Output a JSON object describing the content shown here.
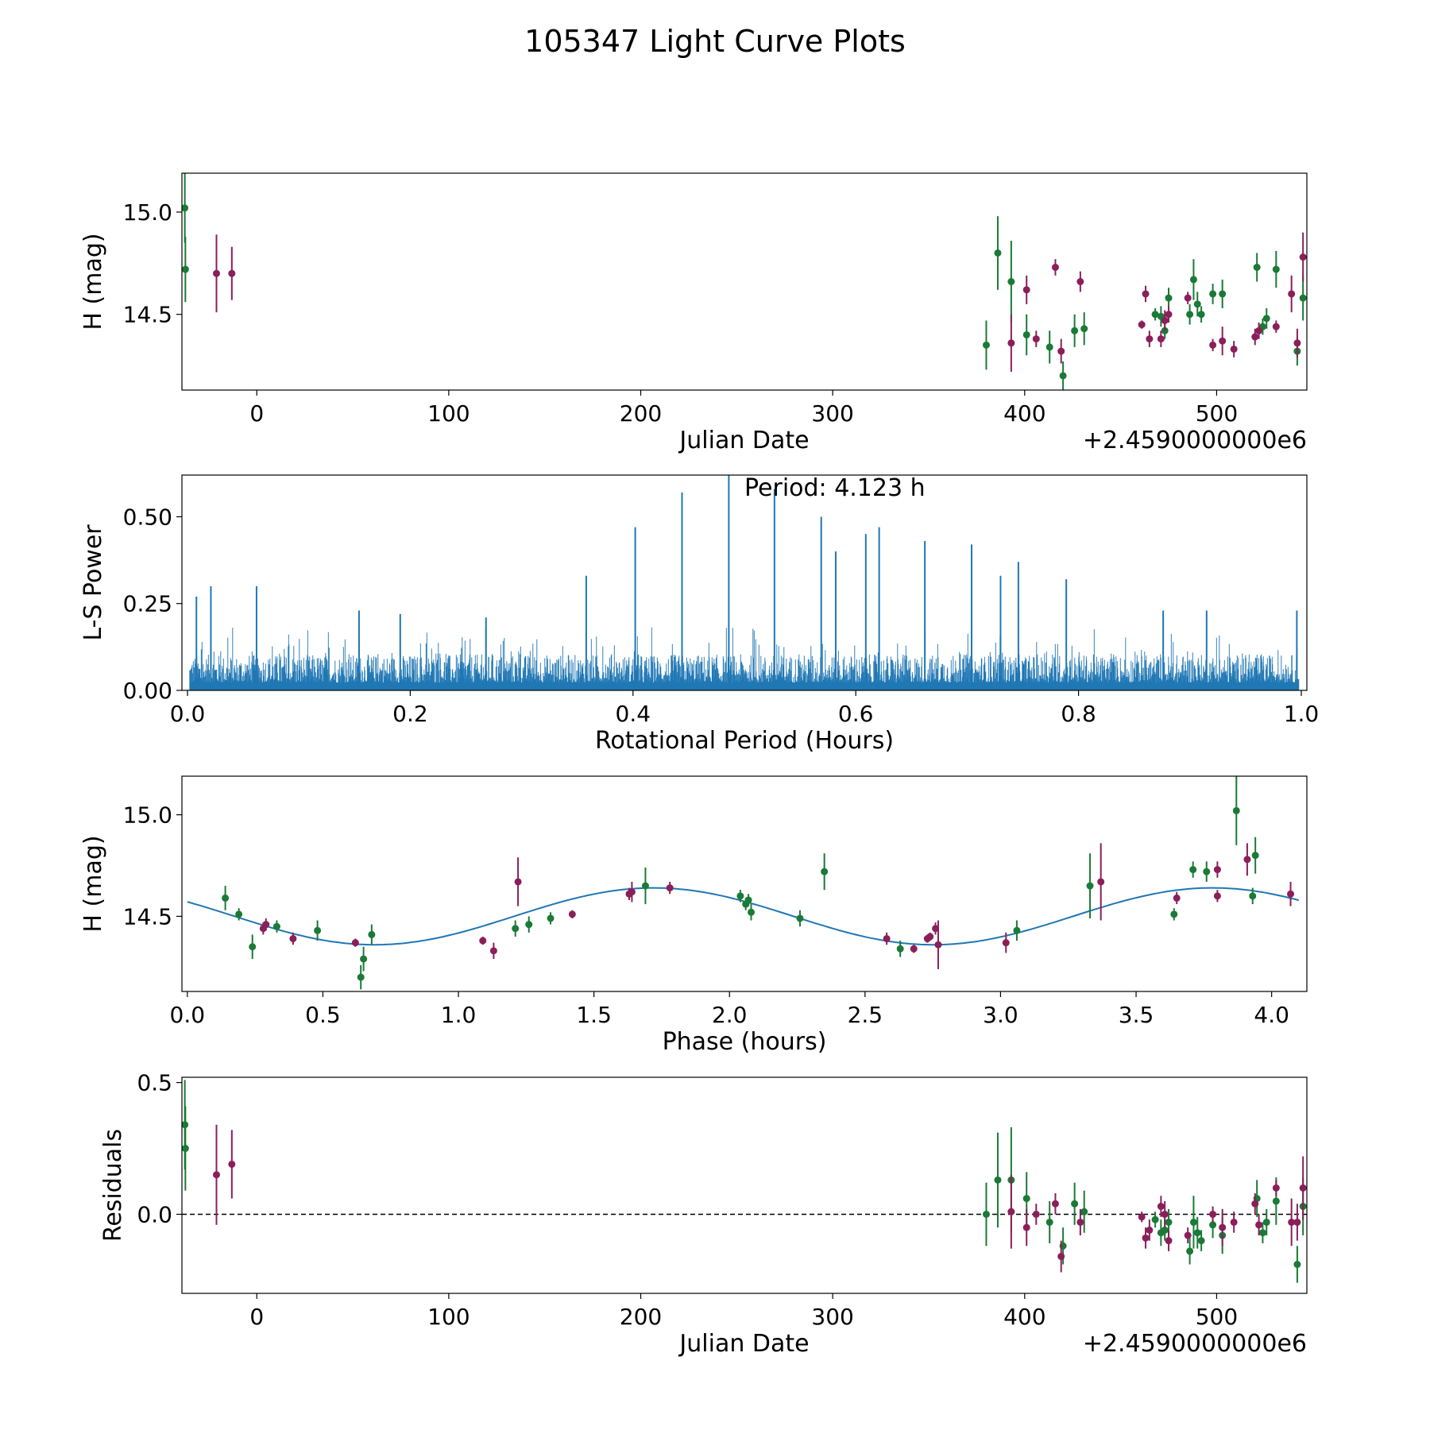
{
  "figure": {
    "suptitle": "105347 Light Curve Plots",
    "colors": {
      "green": "#1a7a36",
      "purple": "#8a1f5a",
      "line": "#1f77b4",
      "dashed": "#000000"
    }
  },
  "chart_data": [
    {
      "type": "scatter",
      "name": "light-curve",
      "title": "",
      "xlabel": "Julian Date",
      "ylabel": "H (mag)",
      "offset_text": "+2.4590000000e6",
      "xlim": [
        -39,
        547
      ],
      "ylim": [
        14.13,
        15.19
      ],
      "xticks": [
        0,
        100,
        200,
        300,
        400,
        500
      ],
      "xtick_labels": [
        "0",
        "100",
        "200",
        "300",
        "400",
        "500"
      ],
      "yticks": [
        14.5,
        15.0
      ],
      "ytick_labels": [
        "14.5",
        "15.0"
      ],
      "series": [
        {
          "name": "green",
          "color": "#1a7a36",
          "points": [
            [
              -37.5,
              15.02,
              0.17
            ],
            [
              -37.2,
              14.72,
              0.16
            ],
            [
              380,
              14.35,
              0.12
            ],
            [
              386,
              14.8,
              0.18
            ],
            [
              393,
              14.66,
              0.2
            ],
            [
              401,
              14.4,
              0.1
            ],
            [
              413,
              14.34,
              0.08
            ],
            [
              420,
              14.2,
              0.07
            ],
            [
              426,
              14.42,
              0.08
            ],
            [
              431,
              14.43,
              0.08
            ],
            [
              468,
              14.5,
              0.03
            ],
            [
              471,
              14.49,
              0.05
            ],
            [
              473,
              14.42,
              0.04
            ],
            [
              475,
              14.58,
              0.05
            ],
            [
              486,
              14.5,
              0.05
            ],
            [
              488,
              14.67,
              0.1
            ],
            [
              490,
              14.55,
              0.06
            ],
            [
              492,
              14.5,
              0.04
            ],
            [
              498,
              14.6,
              0.05
            ],
            [
              503,
              14.6,
              0.07
            ],
            [
              521,
              14.73,
              0.07
            ],
            [
              524,
              14.44,
              0.04
            ],
            [
              526,
              14.48,
              0.05
            ],
            [
              531,
              14.72,
              0.09
            ],
            [
              542,
              14.32,
              0.07
            ],
            [
              545,
              14.58,
              0.11
            ]
          ]
        },
        {
          "name": "purple",
          "color": "#8a1f5a",
          "points": [
            [
              -21,
              14.7,
              0.19
            ],
            [
              -13,
              14.7,
              0.13
            ],
            [
              393,
              14.36,
              0.14
            ],
            [
              401,
              14.62,
              0.07
            ],
            [
              406,
              14.38,
              0.04
            ],
            [
              416,
              14.73,
              0.04
            ],
            [
              419,
              14.32,
              0.06
            ],
            [
              429,
              14.66,
              0.05
            ],
            [
              461,
              14.45,
              0.02
            ],
            [
              463,
              14.6,
              0.04
            ],
            [
              465,
              14.38,
              0.04
            ],
            [
              471,
              14.38,
              0.04
            ],
            [
              473,
              14.47,
              0.05
            ],
            [
              475,
              14.5,
              0.04
            ],
            [
              485,
              14.58,
              0.03
            ],
            [
              498,
              14.35,
              0.03
            ],
            [
              503,
              14.37,
              0.07
            ],
            [
              509,
              14.33,
              0.04
            ],
            [
              520,
              14.39,
              0.04
            ],
            [
              522,
              14.42,
              0.04
            ],
            [
              531,
              14.44,
              0.03
            ],
            [
              539,
              14.6,
              0.09
            ],
            [
              542,
              14.36,
              0.07
            ],
            [
              545,
              14.78,
              0.12
            ]
          ]
        }
      ]
    },
    {
      "type": "line",
      "name": "periodogram",
      "title": "",
      "xlabel": "Rotational Period (Hours)",
      "ylabel": "L-S Power",
      "xlim": [
        -0.005,
        1.005
      ],
      "ylim": [
        0.0,
        0.62
      ],
      "xticks": [
        0.0,
        0.2,
        0.4,
        0.6,
        0.8,
        1.0
      ],
      "xtick_labels": [
        "0.0",
        "0.2",
        "0.4",
        "0.6",
        "0.8",
        "1.0"
      ],
      "yticks": [
        0.0,
        0.25,
        0.5
      ],
      "ytick_labels": [
        "0.00",
        "0.25",
        "0.50"
      ],
      "annotation": "Period: 4.123 h",
      "noise_level": 0.09,
      "peaks": [
        [
          0.008,
          0.27
        ],
        [
          0.021,
          0.3
        ],
        [
          0.062,
          0.3
        ],
        [
          0.154,
          0.23
        ],
        [
          0.191,
          0.22
        ],
        [
          0.268,
          0.21
        ],
        [
          0.358,
          0.33
        ],
        [
          0.402,
          0.47
        ],
        [
          0.444,
          0.57
        ],
        [
          0.486,
          0.62
        ],
        [
          0.527,
          0.58
        ],
        [
          0.569,
          0.5
        ],
        [
          0.582,
          0.4
        ],
        [
          0.609,
          0.45
        ],
        [
          0.621,
          0.47
        ],
        [
          0.662,
          0.43
        ],
        [
          0.704,
          0.42
        ],
        [
          0.73,
          0.33
        ],
        [
          0.746,
          0.37
        ],
        [
          0.789,
          0.32
        ],
        [
          0.876,
          0.23
        ],
        [
          0.915,
          0.23
        ],
        [
          0.996,
          0.23
        ]
      ]
    },
    {
      "type": "scatter",
      "name": "phased-curve",
      "title": "",
      "xlabel": "Phase (hours)",
      "ylabel": "H (mag)",
      "xlim": [
        -0.02,
        4.13
      ],
      "ylim": [
        14.13,
        15.19
      ],
      "xticks": [
        0.0,
        0.5,
        1.0,
        1.5,
        2.0,
        2.5,
        3.0,
        3.5,
        4.0
      ],
      "xtick_labels": [
        "0.0",
        "0.5",
        "1.0",
        "1.5",
        "2.0",
        "2.5",
        "3.0",
        "3.5",
        "4.0"
      ],
      "yticks": [
        14.5,
        15.0
      ],
      "ytick_labels": [
        "14.5",
        "15.0"
      ],
      "fit": {
        "mean": 14.5,
        "amplitude": 0.14,
        "period_h": 4.123,
        "phase_h": 0.69
      },
      "series": [
        {
          "name": "green",
          "color": "#1a7a36",
          "points": [
            [
              0.14,
              14.59,
              0.06
            ],
            [
              0.19,
              14.51,
              0.03
            ],
            [
              0.24,
              14.35,
              0.06
            ],
            [
              0.33,
              14.45,
              0.03
            ],
            [
              0.48,
              14.43,
              0.05
            ],
            [
              0.64,
              14.2,
              0.06
            ],
            [
              0.65,
              14.29,
              0.06
            ],
            [
              0.68,
              14.41,
              0.05
            ],
            [
              1.21,
              14.44,
              0.04
            ],
            [
              1.26,
              14.46,
              0.04
            ],
            [
              1.34,
              14.49,
              0.03
            ],
            [
              1.69,
              14.65,
              0.09
            ],
            [
              2.04,
              14.6,
              0.03
            ],
            [
              2.06,
              14.56,
              0.03
            ],
            [
              2.07,
              14.58,
              0.03
            ],
            [
              2.08,
              14.52,
              0.04
            ],
            [
              2.26,
              14.49,
              0.04
            ],
            [
              2.35,
              14.72,
              0.09
            ],
            [
              2.63,
              14.34,
              0.04
            ],
            [
              3.06,
              14.43,
              0.05
            ],
            [
              3.33,
              14.65,
              0.16
            ],
            [
              3.64,
              14.51,
              0.03
            ],
            [
              3.71,
              14.73,
              0.04
            ],
            [
              3.76,
              14.72,
              0.05
            ],
            [
              3.87,
              15.02,
              0.17
            ],
            [
              3.93,
              14.6,
              0.04
            ],
            [
              3.94,
              14.8,
              0.09
            ]
          ]
        },
        {
          "name": "purple",
          "color": "#8a1f5a",
          "points": [
            [
              0.28,
              14.44,
              0.03
            ],
            [
              0.29,
              14.46,
              0.03
            ],
            [
              0.39,
              14.39,
              0.03
            ],
            [
              0.62,
              14.37,
              0.02
            ],
            [
              1.09,
              14.38,
              0.02
            ],
            [
              1.13,
              14.33,
              0.04
            ],
            [
              1.22,
              14.67,
              0.12
            ],
            [
              1.42,
              14.51,
              0.02
            ],
            [
              1.63,
              14.61,
              0.03
            ],
            [
              1.64,
              14.62,
              0.05
            ],
            [
              1.78,
              14.64,
              0.03
            ],
            [
              2.58,
              14.39,
              0.03
            ],
            [
              2.68,
              14.34,
              0.02
            ],
            [
              2.73,
              14.39,
              0.02
            ],
            [
              2.74,
              14.4,
              0.02
            ],
            [
              2.76,
              14.44,
              0.03
            ],
            [
              2.77,
              14.36,
              0.12
            ],
            [
              3.02,
              14.37,
              0.05
            ],
            [
              3.37,
              14.67,
              0.19
            ],
            [
              3.65,
              14.59,
              0.03
            ],
            [
              3.8,
              14.73,
              0.04
            ],
            [
              3.8,
              14.6,
              0.03
            ],
            [
              3.91,
              14.78,
              0.08
            ],
            [
              4.07,
              14.61,
              0.06
            ]
          ]
        }
      ]
    },
    {
      "type": "scatter",
      "name": "residuals",
      "title": "",
      "xlabel": "Julian Date",
      "ylabel": "Residuals",
      "offset_text": "+2.4590000000e6",
      "xlim": [
        -39,
        547
      ],
      "ylim": [
        -0.3,
        0.52
      ],
      "xticks": [
        0,
        100,
        200,
        300,
        400,
        500
      ],
      "xtick_labels": [
        "0",
        "100",
        "200",
        "300",
        "400",
        "500"
      ],
      "yticks": [
        0.0,
        0.5
      ],
      "ytick_labels": [
        "0.0",
        "0.5"
      ],
      "zero_line": 0.0,
      "series": [
        {
          "name": "green",
          "color": "#1a7a36",
          "points": [
            [
              -37.5,
              0.34,
              0.17
            ],
            [
              -37.2,
              0.25,
              0.16
            ],
            [
              380,
              0.0,
              0.12
            ],
            [
              386,
              0.13,
              0.18
            ],
            [
              393,
              0.13,
              0.2
            ],
            [
              401,
              0.06,
              0.1
            ],
            [
              413,
              -0.03,
              0.08
            ],
            [
              420,
              -0.12,
              0.07
            ],
            [
              426,
              0.04,
              0.08
            ],
            [
              431,
              0.01,
              0.08
            ],
            [
              468,
              -0.02,
              0.03
            ],
            [
              471,
              -0.07,
              0.05
            ],
            [
              473,
              -0.06,
              0.04
            ],
            [
              475,
              -0.03,
              0.05
            ],
            [
              486,
              -0.14,
              0.05
            ],
            [
              488,
              -0.03,
              0.1
            ],
            [
              490,
              -0.07,
              0.06
            ],
            [
              492,
              -0.1,
              0.04
            ],
            [
              498,
              -0.04,
              0.05
            ],
            [
              503,
              -0.08,
              0.07
            ],
            [
              521,
              0.06,
              0.07
            ],
            [
              524,
              -0.07,
              0.04
            ],
            [
              526,
              -0.03,
              0.05
            ],
            [
              531,
              0.05,
              0.09
            ],
            [
              542,
              -0.19,
              0.07
            ],
            [
              545,
              0.03,
              0.11
            ]
          ]
        },
        {
          "name": "purple",
          "color": "#8a1f5a",
          "points": [
            [
              -21,
              0.15,
              0.19
            ],
            [
              -13,
              0.19,
              0.13
            ],
            [
              393,
              0.01,
              0.14
            ],
            [
              401,
              -0.05,
              0.07
            ],
            [
              406,
              0.0,
              0.04
            ],
            [
              416,
              0.04,
              0.04
            ],
            [
              419,
              -0.16,
              0.06
            ],
            [
              429,
              -0.03,
              0.05
            ],
            [
              461,
              -0.01,
              0.02
            ],
            [
              463,
              -0.09,
              0.04
            ],
            [
              465,
              -0.06,
              0.04
            ],
            [
              471,
              0.03,
              0.04
            ],
            [
              473,
              0.0,
              0.05
            ],
            [
              475,
              -0.1,
              0.04
            ],
            [
              485,
              -0.08,
              0.03
            ],
            [
              498,
              0.0,
              0.03
            ],
            [
              503,
              -0.05,
              0.07
            ],
            [
              509,
              -0.03,
              0.04
            ],
            [
              520,
              0.04,
              0.04
            ],
            [
              522,
              -0.04,
              0.04
            ],
            [
              531,
              0.1,
              0.03
            ],
            [
              539,
              -0.03,
              0.09
            ],
            [
              542,
              -0.03,
              0.07
            ],
            [
              545,
              0.1,
              0.12
            ]
          ]
        }
      ]
    }
  ]
}
